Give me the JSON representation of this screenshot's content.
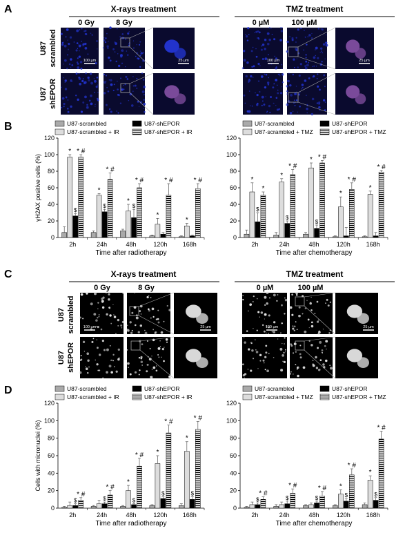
{
  "panels": {
    "A": {
      "letter": "A",
      "xray_title": "X-rays treatment",
      "tmz_title": "TMZ treatment",
      "xray_cols": [
        "0 Gy",
        "8 Gy"
      ],
      "tmz_cols": [
        "0 µM",
        "100 µM"
      ],
      "rows": [
        [
          "U87",
          "scrambled"
        ],
        [
          "U87",
          "shEPOR"
        ]
      ],
      "scale_left": "100 µm",
      "scale_right": "25 µm"
    },
    "C": {
      "letter": "C",
      "xray_title": "X-rays treatment",
      "tmz_title": "TMZ treatment",
      "xray_cols": [
        "0 Gy",
        "8 Gy"
      ],
      "tmz_cols": [
        "0 µM",
        "100 µM"
      ],
      "rows": [
        [
          "U87",
          "scrambled"
        ],
        [
          "U87",
          "shEPOR"
        ]
      ],
      "scale_left": "100 µm",
      "scale_right": "25 µm"
    },
    "B": {
      "letter": "B"
    },
    "D": {
      "letter": "D"
    }
  },
  "colors": {
    "micro_dark": "#0a0a2e",
    "nucleus_blue": "#2233cc",
    "nucleus_pink": "#7a4a9a",
    "fluor_bg": "#000000",
    "fluor_nucleus": "#d8d8d8",
    "bar_scrambled": "#aaaaaa",
    "bar_shEPOR": "#000000",
    "bar_scrambled_treat": "#dddddd",
    "bar_shEPOR_treat": "#ffffff"
  },
  "chart_data": [
    {
      "panel": "B",
      "type": "bar",
      "ylabel": "γH2AX positive cells (%)",
      "xlabel": "Time after radiotherapy",
      "ylim": [
        0,
        120
      ],
      "yticks": [
        0,
        20,
        40,
        60,
        80,
        100,
        120
      ],
      "categories": [
        "2h",
        "24h",
        "48h",
        "120h",
        "168h"
      ],
      "legend": [
        "U87-scrambled",
        "U87-shEPOR",
        "U87-scrambled + IR",
        "U87-shEPOR + IR"
      ],
      "series": [
        {
          "name": "U87-scrambled",
          "values": [
            6,
            6,
            8,
            2,
            1
          ],
          "err": [
            7,
            2,
            2,
            1,
            1
          ]
        },
        {
          "name": "U87-scrambled + IR",
          "values": [
            97,
            51,
            32,
            16,
            14
          ],
          "err": [
            3,
            2,
            8,
            7,
            3
          ]
        },
        {
          "name": "U87-shEPOR",
          "values": [
            26,
            31,
            24,
            4,
            2
          ],
          "err": [
            3,
            3,
            10,
            2,
            1
          ]
        },
        {
          "name": "U87-shEPOR + IR",
          "values": [
            97,
            70,
            60,
            51,
            59
          ],
          "err": [
            3,
            8,
            5,
            14,
            6
          ]
        }
      ],
      "marks": [
        [
          "*",
          "$",
          "* #"
        ],
        [
          "*",
          "$",
          "* #"
        ],
        [
          "*",
          "$",
          "* #"
        ],
        [
          "*",
          "",
          "* #"
        ],
        [
          "*",
          "",
          "* #"
        ]
      ]
    },
    {
      "panel": "B",
      "type": "bar",
      "ylabel": "",
      "xlabel": "Time after chemotherapy",
      "ylim": [
        0,
        120
      ],
      "yticks": [
        0,
        20,
        40,
        60,
        80,
        100,
        120
      ],
      "categories": [
        "2h",
        "24h",
        "48h",
        "120h",
        "168h"
      ],
      "legend": [
        "U87-scrambled",
        "U87-shEPOR",
        "U87-scrambled + TMZ",
        "U87-shEPOR + TMZ"
      ],
      "series": [
        {
          "name": "U87-scrambled",
          "values": [
            4,
            3,
            4,
            1,
            1
          ],
          "err": [
            5,
            3,
            2,
            1,
            1
          ]
        },
        {
          "name": "U87-scrambled + TMZ",
          "values": [
            55,
            67,
            84,
            37,
            52
          ],
          "err": [
            11,
            4,
            6,
            12,
            4
          ]
        },
        {
          "name": "U87-shEPOR",
          "values": [
            19,
            17,
            11,
            2,
            2
          ],
          "err": [
            11,
            3,
            4,
            10,
            4
          ]
        },
        {
          "name": "U87-shEPOR + TMZ",
          "values": [
            51,
            76,
            90,
            58,
            79
          ],
          "err": [
            4,
            6,
            3,
            8,
            2
          ]
        }
      ],
      "marks": [
        [
          "*",
          "$",
          "*"
        ],
        [
          "*",
          "$",
          "* #"
        ],
        [
          "*",
          "$",
          "* #"
        ],
        [
          "*",
          "",
          "* #"
        ],
        [
          "*",
          "",
          "* #"
        ]
      ]
    },
    {
      "panel": "D",
      "type": "bar",
      "ylabel": "Cells with micronuclei (%)",
      "xlabel": "Time after radiotherapy",
      "ylim": [
        0,
        120
      ],
      "yticks": [
        0,
        20,
        40,
        60,
        80,
        100,
        120
      ],
      "categories": [
        "2h",
        "24h",
        "48h",
        "120h",
        "168h"
      ],
      "legend": [
        "U87-scrambled",
        "U87-shEPOR",
        "U87-scrambled + IR",
        "U87-shEPOR + IR"
      ],
      "series": [
        {
          "name": "U87-scrambled",
          "values": [
            1,
            2,
            2,
            3,
            3
          ],
          "err": [
            1,
            1,
            1,
            1,
            2
          ]
        },
        {
          "name": "U87-scrambled + IR",
          "values": [
            3,
            5,
            20,
            51,
            65
          ],
          "err": [
            4,
            4,
            6,
            9,
            11
          ]
        },
        {
          "name": "U87-shEPOR",
          "values": [
            3,
            5,
            4,
            11,
            10
          ],
          "err": [
            2,
            2,
            1,
            2,
            3
          ]
        },
        {
          "name": "U87-shEPOR + IR",
          "values": [
            9,
            15,
            48,
            86,
            90
          ],
          "err": [
            3,
            5,
            9,
            9,
            9
          ]
        }
      ],
      "marks": [
        [
          "",
          "$",
          "* #"
        ],
        [
          "",
          "$",
          "* #"
        ],
        [
          "*",
          "$",
          "* #"
        ],
        [
          "*",
          "$",
          "* #"
        ],
        [
          "*",
          "$",
          "* #"
        ]
      ]
    },
    {
      "panel": "D",
      "type": "bar",
      "ylabel": "",
      "xlabel": "Time after chemotherapy",
      "ylim": [
        0,
        120
      ],
      "yticks": [
        0,
        20,
        40,
        60,
        80,
        100,
        120
      ],
      "categories": [
        "2h",
        "24h",
        "48h",
        "120h",
        "168h"
      ],
      "legend": [
        "U87-scrambled",
        "U87-shEPOR",
        "U87-scrambled + TMZ",
        "U87-shEPOR + TMZ"
      ],
      "series": [
        {
          "name": "U87-scrambled",
          "values": [
            1,
            2,
            3,
            3,
            4
          ],
          "err": [
            1,
            2,
            1,
            1,
            2
          ]
        },
        {
          "name": "U87-scrambled + TMZ",
          "values": [
            4,
            4,
            4,
            16,
            32
          ],
          "err": [
            3,
            3,
            2,
            5,
            5
          ]
        },
        {
          "name": "U87-shEPOR",
          "values": [
            4,
            5,
            6,
            8,
            9
          ],
          "err": [
            2,
            3,
            2,
            3,
            3
          ]
        },
        {
          "name": "U87-shEPOR + TMZ",
          "values": [
            10,
            17,
            14,
            38,
            79
          ],
          "err": [
            3,
            5,
            5,
            7,
            9
          ]
        }
      ],
      "marks": [
        [
          "",
          "$",
          "* #"
        ],
        [
          "",
          "$",
          "* #"
        ],
        [
          "",
          "$",
          "* #"
        ],
        [
          "*",
          "$",
          "* #"
        ],
        [
          "*",
          "$",
          "* #"
        ]
      ]
    }
  ]
}
